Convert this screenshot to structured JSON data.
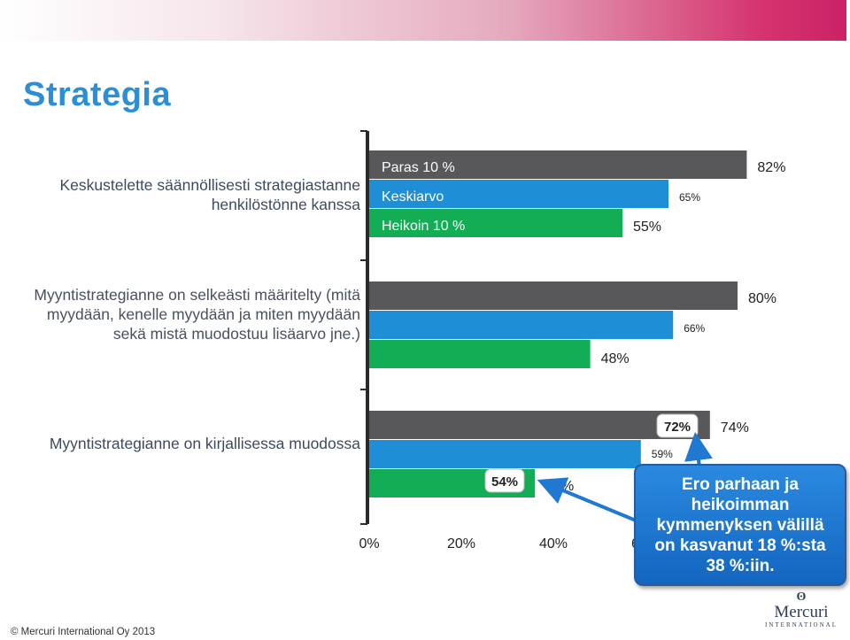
{
  "slide": {
    "title": "Strategia",
    "copyright": "© Mercuri International Oy 2013",
    "callout": "Ero parhaan ja heikoimman kymmenyksen välillä on kasvanut 18 %:sta 38 %:iin.",
    "logo": {
      "name": "Mercuri",
      "sub": "INTERNATIONAL"
    }
  },
  "colors": {
    "paras": "#58585a",
    "keskiarvo": "#1e8fd6",
    "heikoin": "#13ad56",
    "title": "#2a8fd6",
    "callout": "#1f78d1"
  },
  "chart_data": {
    "type": "bar",
    "orientation": "horizontal",
    "categories": [
      "Keskustelette säännöllisesti strategiastanne henkilöstönne kanssa",
      "Myyntistrategianne on selkeästi määritelty (mitä myydään, kenelle myydään ja miten myydään sekä mistä muodostuu lisäarvo jne.)",
      "Myyntistrategianne on kirjallisessa muodossa"
    ],
    "series": [
      {
        "name": "Paras 10 %",
        "values": [
          82,
          80,
          74
        ]
      },
      {
        "name": "Keskiarvo",
        "values": [
          65,
          66,
          59
        ]
      },
      {
        "name": "Heikoin 10 %",
        "values": [
          55,
          48,
          36
        ]
      }
    ],
    "value_labels": [
      [
        "82%",
        "65%",
        "55%"
      ],
      [
        "80%",
        "66%",
        "48%"
      ],
      [
        "74%",
        "59%",
        "36%"
      ]
    ],
    "xlim": [
      0,
      100
    ],
    "x_ticks": [
      "0%",
      "20%",
      "40%",
      "60%"
    ],
    "annotations": [
      {
        "text": "54%",
        "note": "earlier value, Heikoin 10 %, row 3"
      },
      {
        "text": "72%",
        "note": "earlier value, Paras 10 %, row 3"
      }
    ],
    "legend": "inside-bars-top-left"
  }
}
